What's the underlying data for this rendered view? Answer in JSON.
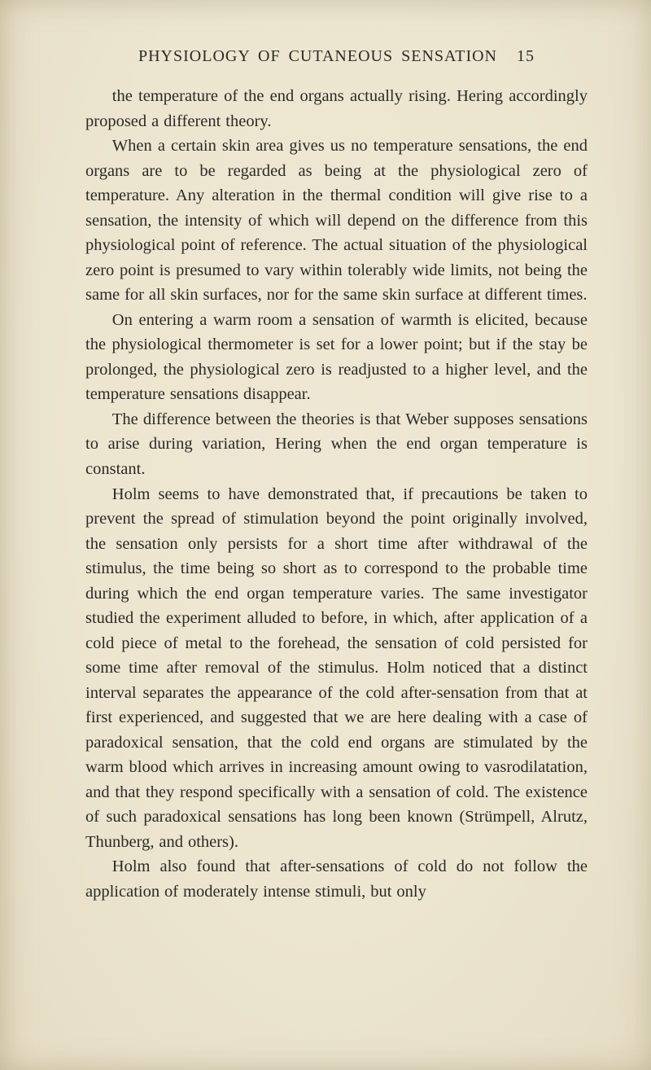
{
  "header": {
    "running_title": "PHYSIOLOGY OF CUTANEOUS SENSATION",
    "page_number": "15"
  },
  "paragraphs": {
    "p1": "the temperature of the end organs actually rising. Hering accordingly proposed a different theory.",
    "p2": "When a certain skin area gives us no temperature sen­sations, the end organs are to be regarded as being at the physiological zero of temperature. Any alteration in the thermal condition will give rise to a sensation, the intensity of which will depend on the difference from this physiological point of reference. The actual situation of the physiological zero point is presumed to vary within tolerably wide limits, not being the same for all skin surfaces, nor for the same skin surface at different times.",
    "p3": "On entering a warm room a sensation of warmth is elicited, because the physiological thermometer is set for a lower point; but if the stay be prolonged, the physiological zero is readjusted to a higher level, and the temperature sensations disappear.",
    "p4": "The difference between the theories is that Weber supposes sensations to arise during variation, Hering when the end organ temperature is constant.",
    "p5": "Holm seems to have demonstrated that, if precautions be taken to prevent the spread of stimulation beyond the point originally involved, the sensation only persists for a short time after withdrawal of the stimulus, the time being so short as to correspond to the probable time during which the end organ temperature varies. The same investigator studied the experiment alluded to before, in which, after application of a cold piece of metal to the forehead, the sensation of cold persisted for some time after removal of the stimulus. Holm noticed that a distinct interval separates the appearance of the cold after-sensation from that at first experienced, and suggested that we are here dealing with a case of paradoxical sensation, that the cold end organs are stimulated by the warm blood which arrives in increasing amount owing to vasrodilatation, and that they respond specifically with a sensation of cold. The existence of such paradoxical sen­sations has long been known (Strümpell, Alrutz, Thunberg, and others).",
    "p6": "Holm also found that after-sensations of cold do not follow the application of moderately intense stimuli, but only"
  }
}
